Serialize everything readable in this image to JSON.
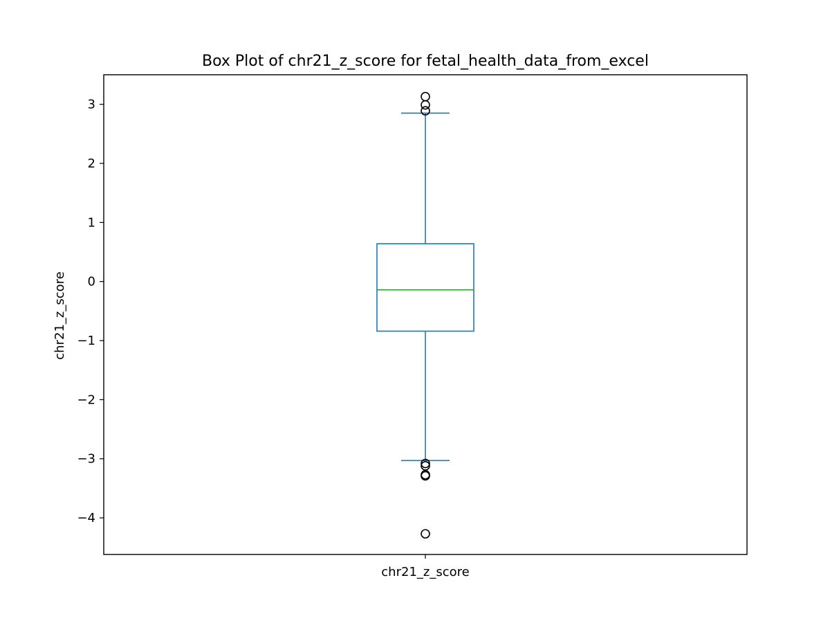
{
  "chart_data": {
    "type": "box",
    "title": "Box Plot of chr21_z_score for fetal_health_data_from_excel",
    "xlabel": "",
    "ylabel": "chr21_z_score",
    "categories": [
      "chr21_z_score"
    ],
    "ylim": [
      -4.62,
      3.5
    ],
    "yticks": [
      -4,
      -3,
      -2,
      -1,
      0,
      1,
      2,
      3
    ],
    "ytick_labels": [
      "−4",
      "−3",
      "−2",
      "−1",
      "0",
      "1",
      "2",
      "3"
    ],
    "grid": false,
    "box": {
      "q1": -0.84,
      "median": -0.14,
      "q3": 0.64,
      "whisker_low": -3.03,
      "whisker_high": 2.85,
      "outliers": [
        3.13,
        2.99,
        2.89,
        -3.08,
        -3.12,
        -3.27,
        -3.29,
        -4.27
      ]
    },
    "colors": {
      "box": "#1f77b4",
      "median": "#2ca02c",
      "outlier_edge": "#000000",
      "axes": "#000000"
    }
  }
}
